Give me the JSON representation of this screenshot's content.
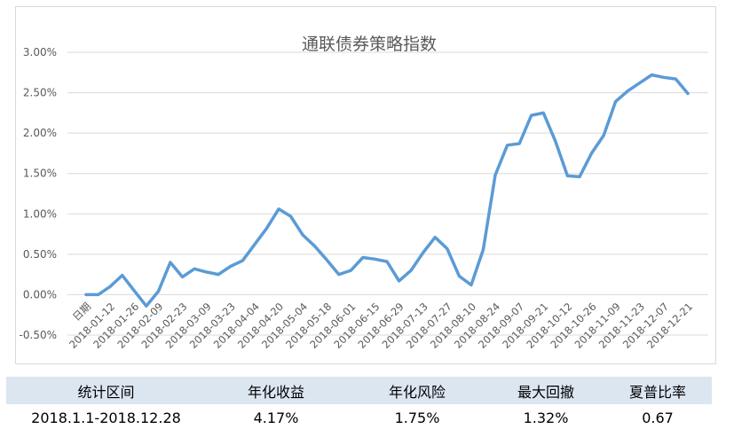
{
  "chart_data": {
    "type": "line",
    "title": "通联债券策略指数",
    "xlabel": "",
    "ylabel": "",
    "ylim": [
      -0.5,
      3.0
    ],
    "yticks": [
      "3.00%",
      "2.50%",
      "2.00%",
      "1.50%",
      "1.00%",
      "0.50%",
      "0.00%",
      "-0.50%"
    ],
    "ytick_values": [
      3.0,
      2.5,
      2.0,
      1.5,
      1.0,
      0.5,
      0.0,
      -0.5
    ],
    "xtick_labels": [
      "日期",
      "2018-01-12",
      "2018-01-26",
      "2018-02-09",
      "2018-02-23",
      "2018-03-09",
      "2018-03-23",
      "2018-04-04",
      "2018-04-20",
      "2018-05-04",
      "2018-05-18",
      "2018-06-01",
      "2018-06-15",
      "2018-06-29",
      "2018-07-13",
      "2018-07-27",
      "2018-08-10",
      "2018-08-24",
      "2018-09-07",
      "2018-09-21",
      "2018-10-12",
      "2018-10-26",
      "2018-11-09",
      "2018-11-23",
      "2018-12-07",
      "2018-12-21"
    ],
    "grid": "horizontal",
    "legend": "none",
    "color": "#5b9bd5",
    "series": [
      {
        "values": [
          0.0,
          0.0,
          0.1,
          0.24,
          0.05,
          -0.14,
          0.04,
          0.4,
          0.22,
          0.32,
          0.28,
          0.25,
          0.35,
          0.42,
          0.62,
          0.82,
          1.06,
          0.97,
          0.74,
          0.6,
          0.43,
          0.25,
          0.3,
          0.46,
          0.44,
          0.41,
          0.17,
          0.3,
          0.52,
          0.71,
          0.57,
          0.23,
          0.12,
          0.56,
          1.48,
          1.85,
          1.87,
          2.22,
          2.25,
          1.9,
          1.47,
          1.46,
          1.75,
          1.97,
          2.39,
          2.52,
          2.62,
          2.72,
          2.69,
          2.67,
          2.49
        ]
      }
    ]
  },
  "stats_table": {
    "headers": [
      "统计区间",
      "年化收益",
      "年化风险",
      "最大回撤",
      "夏普比率"
    ],
    "values": [
      "2018.1.1-2018.12.28",
      "4.17%",
      "1.75%",
      "1.32%",
      "0.67"
    ]
  }
}
